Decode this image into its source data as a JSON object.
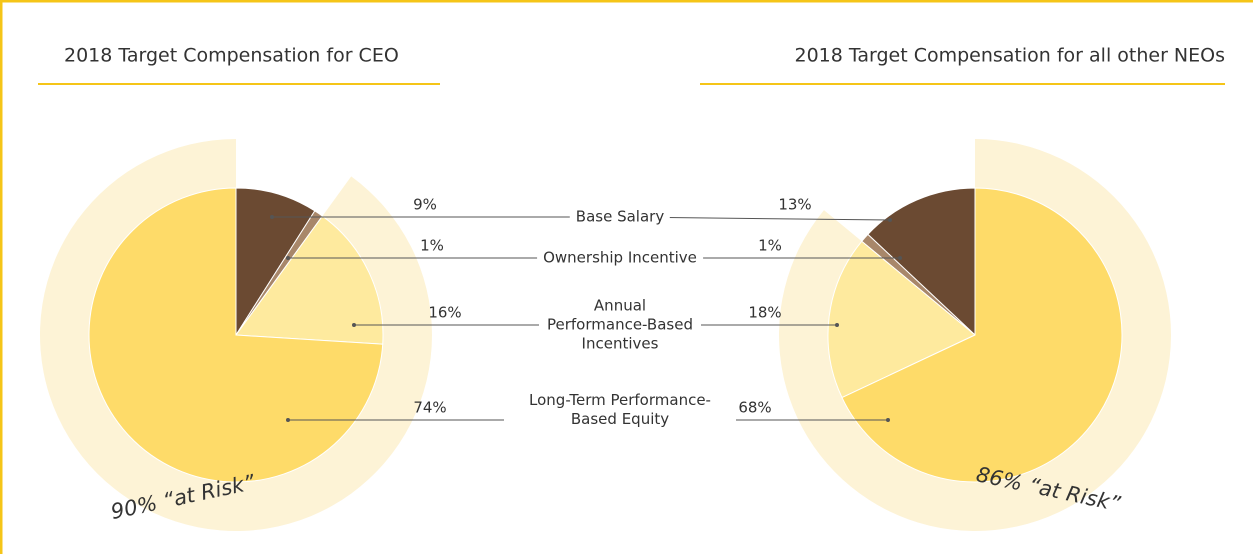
{
  "chart_data": [
    {
      "type": "pie",
      "title": "2018 Target Compensation for CEO",
      "categories": [
        "Base Salary",
        "Ownership Incentive",
        "Annual Performance-Based Incentives",
        "Long-Term Performance-Based Equity"
      ],
      "values": [
        9,
        1,
        16,
        74
      ],
      "value_labels": [
        "9%",
        "1%",
        "16%",
        "74%"
      ],
      "colors": [
        "#6b4a32",
        "#a8876a",
        "#feea9e",
        "#fedb69"
      ],
      "clockwise": true,
      "annotation": {
        "value": 90,
        "label": "90% “at Risk”"
      }
    },
    {
      "type": "pie",
      "title": "2018 Target Compensation for all other NEOs",
      "values": [
        13,
        1,
        18,
        68
      ],
      "value_labels": [
        "13%",
        "1%",
        "18%",
        "68%"
      ],
      "colors": [
        "#6b4a32",
        "#a8876a",
        "#feea9e",
        "#fedb69"
      ],
      "clockwise": false,
      "annotation": {
        "value": 86,
        "label": "86% “at Risk”"
      }
    }
  ]
}
